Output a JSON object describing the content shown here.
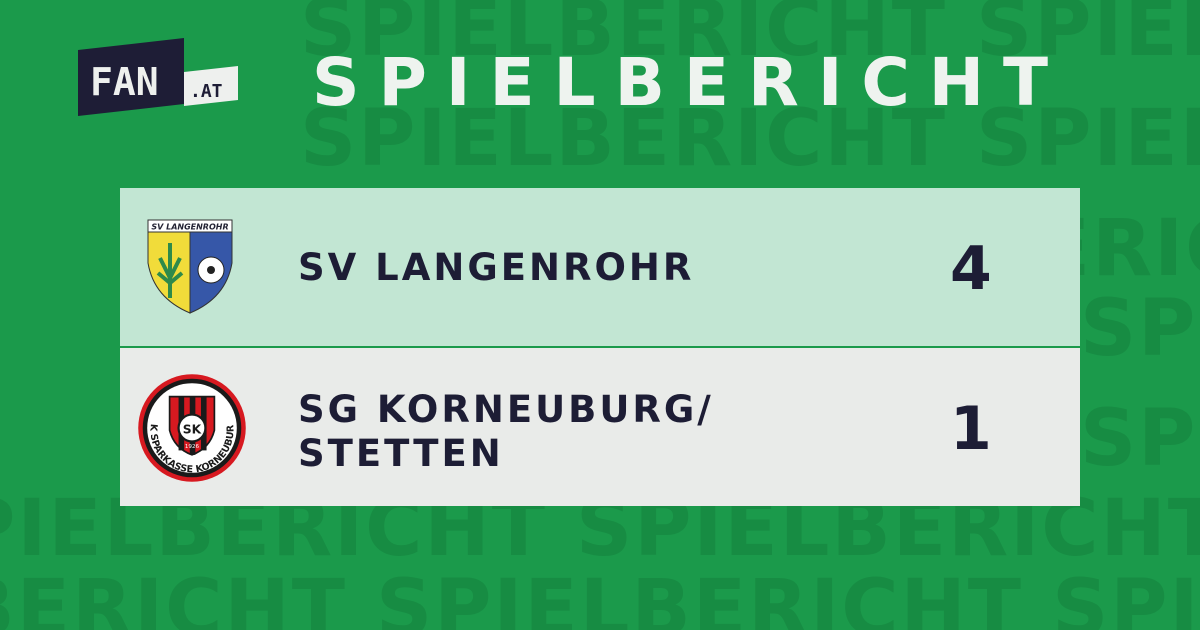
{
  "brand": {
    "logo_main": "FAN",
    "logo_sub": ".AT"
  },
  "header": {
    "title": "SPIELBERICHT"
  },
  "watermark": "SPIELBERICHT SPIELBERICHT SPIELBERICHT",
  "match": {
    "home": {
      "name": "SV LANGENROHR",
      "score": "4",
      "crest_text": "SV LANGENROHR"
    },
    "away": {
      "name_line1": "SG KORNEUBURG/",
      "name_line2": "STETTEN",
      "score": "1",
      "crest_text": "SK SPARKASSE KORNEUBURG",
      "crest_year": "1926",
      "crest_initials": "SK"
    }
  },
  "colors": {
    "background": "#1b9a4b",
    "home_row": "#c2e6d3",
    "away_row": "#e9ebe9",
    "text": "#1d1d35"
  }
}
